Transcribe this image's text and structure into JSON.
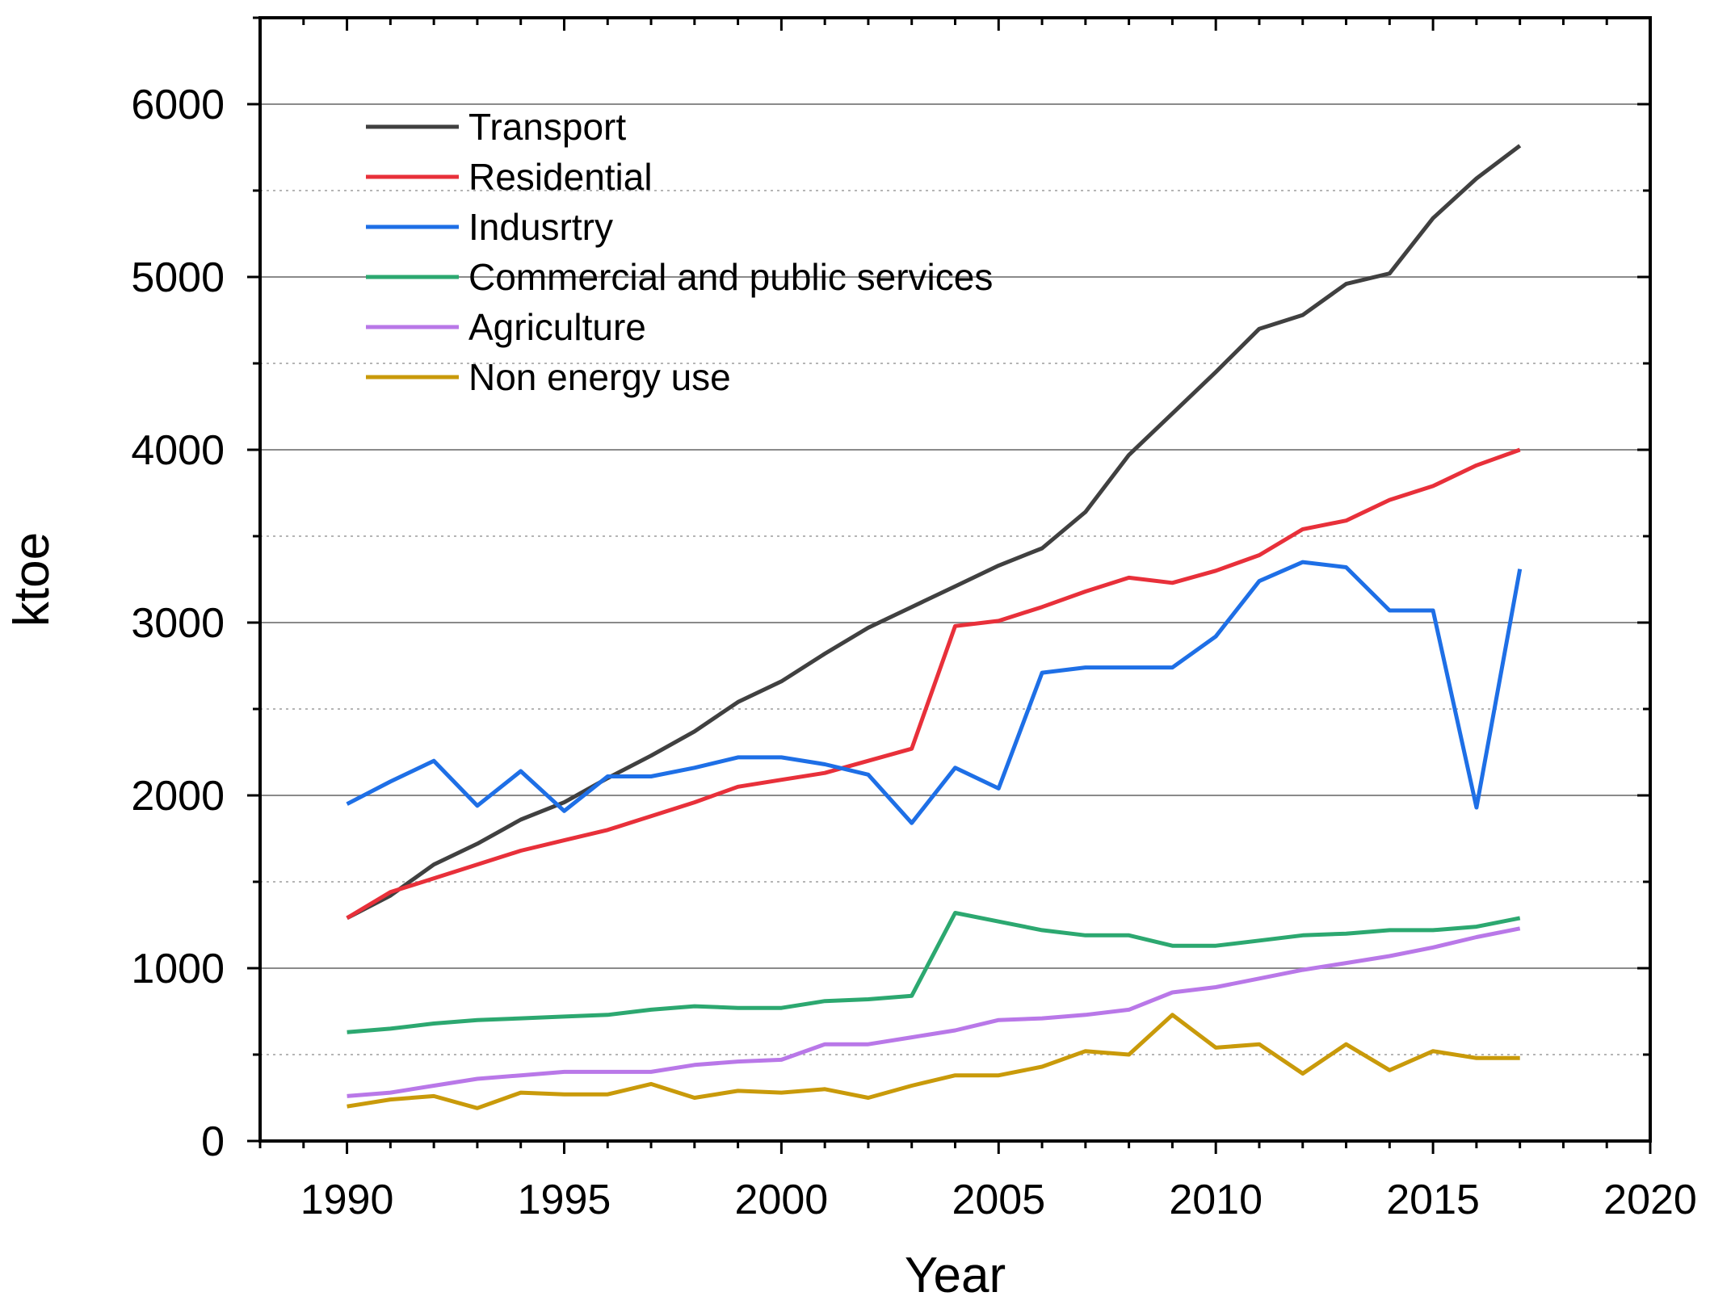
{
  "chart_data": {
    "type": "line",
    "title": "",
    "xlabel": "Year",
    "ylabel": "ktoe",
    "xlim": [
      1988,
      2020
    ],
    "ylim": [
      0,
      6500
    ],
    "xticks": [
      1990,
      1995,
      2000,
      2005,
      2010,
      2015,
      2020
    ],
    "yticks": [
      0,
      1000,
      2000,
      3000,
      4000,
      5000,
      6000
    ],
    "xtick_labels": [
      "1990",
      "1995",
      "2000",
      "2005",
      "2010",
      "2015",
      "2020"
    ],
    "ytick_labels": [
      "0",
      "1000",
      "2000",
      "3000",
      "4000",
      "5000",
      "6000"
    ],
    "grid": "major solid, minor dotted (horizontal)",
    "legend_position": "top-left",
    "x": [
      1990,
      1991,
      1992,
      1993,
      1994,
      1995,
      1996,
      1997,
      1998,
      1999,
      2000,
      2001,
      2002,
      2003,
      2004,
      2005,
      2006,
      2007,
      2008,
      2009,
      2010,
      2011,
      2012,
      2013,
      2014,
      2015,
      2016,
      2017
    ],
    "series": [
      {
        "name": "Transport",
        "color": "#404040",
        "values": [
          1290,
          1420,
          1600,
          1720,
          1860,
          1960,
          2100,
          2230,
          2370,
          2540,
          2660,
          2820,
          2970,
          3090,
          3210,
          3330,
          3430,
          3640,
          3970,
          4210,
          4450,
          4700,
          4780,
          4960,
          5020,
          5340,
          5570,
          5760
        ]
      },
      {
        "name": "Residential",
        "color": "#e8303a",
        "values": [
          1290,
          1440,
          1520,
          1600,
          1680,
          1740,
          1800,
          1880,
          1960,
          2050,
          2090,
          2130,
          2200,
          2270,
          2980,
          3010,
          3090,
          3180,
          3260,
          3230,
          3300,
          3390,
          3540,
          3590,
          3710,
          3790,
          3910,
          4000
        ]
      },
      {
        "name": "Indusrtry",
        "color": "#1e6fe6",
        "values": [
          1950,
          2080,
          2200,
          1940,
          2140,
          1910,
          2110,
          2110,
          2160,
          2220,
          2220,
          2180,
          2120,
          1840,
          2160,
          2040,
          2710,
          2740,
          2740,
          2740,
          2920,
          3240,
          3350,
          3320,
          3070,
          3070,
          1930,
          3310
        ]
      },
      {
        "name": "Commercial and public services",
        "color": "#2ca870",
        "values": [
          630,
          650,
          680,
          700,
          710,
          720,
          730,
          760,
          780,
          770,
          770,
          810,
          820,
          840,
          1320,
          1270,
          1220,
          1190,
          1190,
          1130,
          1130,
          1160,
          1190,
          1200,
          1220,
          1220,
          1240,
          1290
        ]
      },
      {
        "name": "Agriculture",
        "color": "#b978e8",
        "values": [
          260,
          280,
          320,
          360,
          380,
          400,
          400,
          400,
          440,
          460,
          470,
          560,
          560,
          600,
          640,
          700,
          710,
          730,
          760,
          860,
          890,
          940,
          990,
          1030,
          1070,
          1120,
          1180,
          1230
        ]
      },
      {
        "name": "Non energy use",
        "color": "#c99a0a",
        "values": [
          200,
          240,
          260,
          190,
          280,
          270,
          270,
          330,
          250,
          290,
          280,
          300,
          250,
          320,
          380,
          380,
          430,
          520,
          500,
          730,
          540,
          560,
          390,
          560,
          410,
          520,
          480,
          480
        ]
      }
    ]
  }
}
